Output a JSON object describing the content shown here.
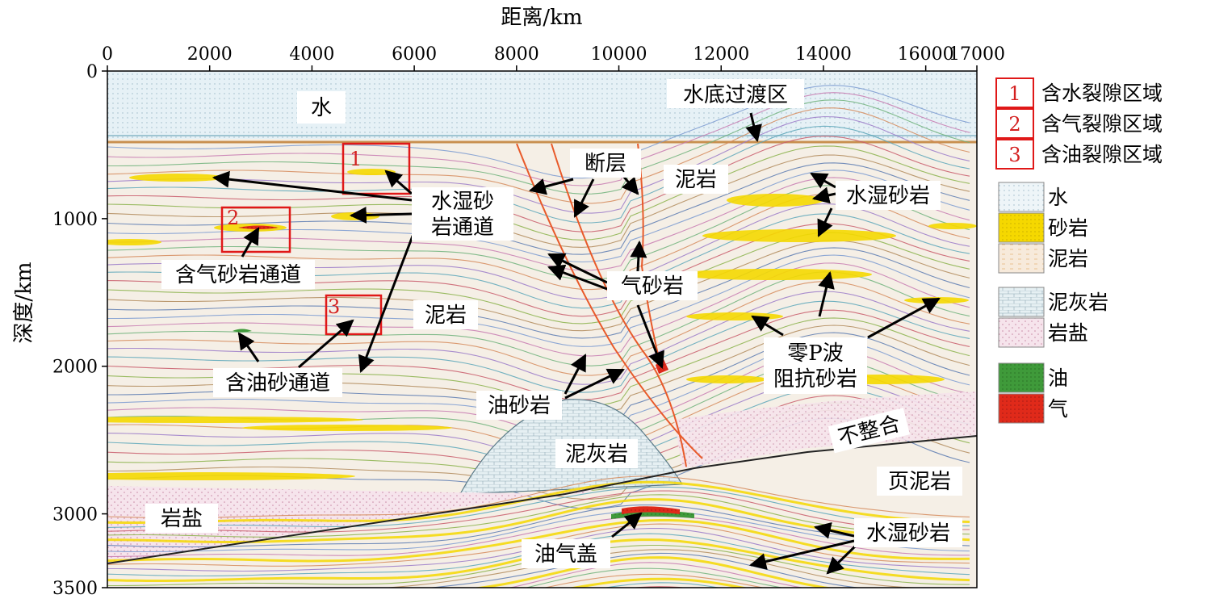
{
  "x_axis": {
    "label": "距离/km",
    "ticks": [
      "0",
      "2000",
      "4000",
      "6000",
      "8000",
      "10000",
      "12000",
      "14000",
      "16000",
      "17000"
    ],
    "values": [
      0,
      2000,
      4000,
      6000,
      8000,
      10000,
      12000,
      14000,
      16000,
      17000
    ],
    "range": [
      0,
      17000
    ]
  },
  "y_axis": {
    "label": "深度/km",
    "ticks": [
      "0",
      "1000",
      "2000",
      "3000",
      "3500"
    ],
    "values": [
      0,
      1000,
      2000,
      3000,
      3500
    ],
    "range": [
      0,
      3500
    ]
  },
  "annotations": {
    "water": "水",
    "water_bottom_transition": "水底过渡区",
    "fault": "断层",
    "mudstone_upper": "泥岩",
    "water_wet_sand_channel_l1": "水湿砂",
    "water_wet_sand_channel_l2": "岩通道",
    "water_wet_sandstone_upper": "水湿砂岩",
    "gas_sand_channel": "含气砂岩通道",
    "gas_sandstone": "气砂岩",
    "mudstone_middle": "泥岩",
    "zero_p_l1": "零P波",
    "zero_p_l2": "阻抗砂岩",
    "oil_sand_channel": "含油砂通道",
    "oil_sandstone": "油砂岩",
    "marl": "泥灰岩",
    "unconformity": "不整合",
    "shale": "页泥岩",
    "salt": "岩盐",
    "oil_gas_cap": "油气盖",
    "water_wet_sandstone_lower": "水湿砂岩"
  },
  "regions": [
    {
      "num": "1",
      "label": "含水裂隙区域"
    },
    {
      "num": "2",
      "label": "含气裂隙区域"
    },
    {
      "num": "3",
      "label": "含油裂隙区域"
    }
  ],
  "legend": [
    {
      "label": "水",
      "color": "#eef5f8"
    },
    {
      "label": "砂岩",
      "color": "#f5d800"
    },
    {
      "label": "泥岩",
      "color": "#f7e7cf"
    },
    {
      "label": "泥灰岩",
      "color": "#e3f0f2"
    },
    {
      "label": "岩盐",
      "color": "#f4e1ea"
    },
    {
      "label": "油",
      "color": "#3f9a3a"
    },
    {
      "label": "气",
      "color": "#e02a1a"
    }
  ],
  "colors": {
    "region_box": "#e01818",
    "fault_line": "#e85a2a",
    "water_fill": "#e6f1f6"
  }
}
